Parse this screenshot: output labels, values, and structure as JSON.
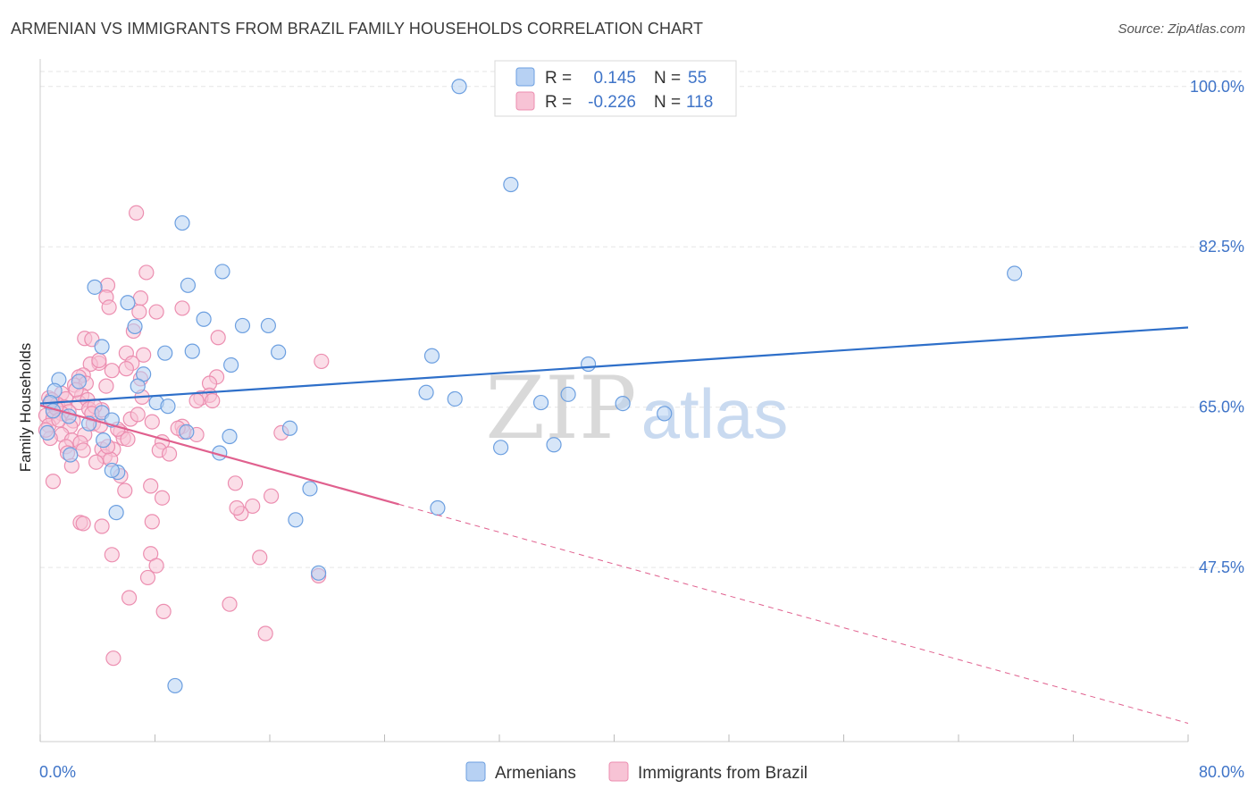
{
  "title": "ARMENIAN VS IMMIGRANTS FROM BRAZIL FAMILY HOUSEHOLDS CORRELATION CHART",
  "source": "Source: ZipAtlas.com",
  "watermark": {
    "zip": "ZIP",
    "atlas": "atlas"
  },
  "colors": {
    "blue": "#6c9fe0",
    "blue_fill": "#b7d1f3",
    "blue_line": "#2e6fc9",
    "pink": "#ec8eb0",
    "pink_fill": "#f7c3d5",
    "pink_line": "#e0608e",
    "grid": "#e5e5e5",
    "axis_text": "#3f74c8"
  },
  "legend": {
    "r_label": "R =",
    "n_label": "N =",
    "series": [
      {
        "r": "0.145",
        "n": "55"
      },
      {
        "r": "-0.226",
        "n": "118"
      }
    ]
  },
  "chart_data": {
    "type": "scatter",
    "title": "ARMENIAN VS IMMIGRANTS FROM BRAZIL FAMILY HOUSEHOLDS CORRELATION CHART",
    "xlabel": "",
    "ylabel": "Family Households",
    "xlim": [
      0,
      80
    ],
    "ylim": [
      28.5,
      103
    ],
    "x_tick_labels": [
      "0.0%",
      "80.0%"
    ],
    "y_ticks": [
      47.5,
      65.0,
      82.5,
      100.0
    ],
    "y_tick_labels": [
      "47.5%",
      "65.0%",
      "82.5%",
      "100.0%"
    ],
    "grid": true,
    "legend_position": "top-center",
    "series": [
      {
        "name": "Armenians",
        "r": 0.145,
        "n": 55,
        "trend": {
          "x0": 0,
          "y0": 65.4,
          "x1": 80,
          "y1": 73.7
        },
        "points": [
          [
            29.2,
            100.0
          ],
          [
            32.8,
            89.3
          ],
          [
            9.9,
            85.1
          ],
          [
            12.7,
            79.8
          ],
          [
            67.9,
            79.6
          ],
          [
            3.8,
            78.1
          ],
          [
            10.3,
            78.3
          ],
          [
            6.1,
            76.4
          ],
          [
            11.4,
            74.6
          ],
          [
            14.1,
            73.9
          ],
          [
            15.9,
            73.9
          ],
          [
            6.6,
            73.8
          ],
          [
            4.3,
            71.6
          ],
          [
            8.7,
            70.9
          ],
          [
            10.6,
            71.1
          ],
          [
            16.6,
            71.0
          ],
          [
            27.3,
            70.6
          ],
          [
            13.3,
            69.6
          ],
          [
            38.2,
            69.7
          ],
          [
            1.3,
            68.0
          ],
          [
            2.7,
            67.8
          ],
          [
            7.2,
            68.6
          ],
          [
            6.8,
            67.3
          ],
          [
            1.0,
            66.8
          ],
          [
            26.9,
            66.6
          ],
          [
            36.8,
            66.4
          ],
          [
            28.9,
            65.9
          ],
          [
            40.6,
            65.4
          ],
          [
            34.9,
            65.5
          ],
          [
            0.7,
            65.5
          ],
          [
            8.1,
            65.5
          ],
          [
            8.9,
            65.1
          ],
          [
            43.5,
            64.3
          ],
          [
            0.9,
            64.6
          ],
          [
            4.3,
            64.4
          ],
          [
            2.0,
            64.0
          ],
          [
            5.0,
            63.6
          ],
          [
            3.4,
            63.2
          ],
          [
            17.4,
            62.7
          ],
          [
            10.2,
            62.3
          ],
          [
            0.5,
            62.2
          ],
          [
            13.2,
            61.8
          ],
          [
            4.4,
            61.4
          ],
          [
            35.8,
            60.9
          ],
          [
            32.1,
            60.6
          ],
          [
            12.5,
            60.0
          ],
          [
            2.1,
            59.8
          ],
          [
            5.4,
            57.9
          ],
          [
            18.8,
            56.1
          ],
          [
            27.7,
            54.0
          ],
          [
            5.3,
            53.5
          ],
          [
            17.8,
            52.7
          ],
          [
            19.4,
            46.9
          ],
          [
            9.4,
            34.6
          ],
          [
            5.0,
            58.1
          ]
        ]
      },
      {
        "name": "Immigrants from Brazil",
        "r": -0.226,
        "n": 118,
        "trend": {
          "x0": 0,
          "y0": 65.2,
          "x1": 25.0,
          "y1": 54.4
        },
        "trend_extension": {
          "x0": 25.0,
          "y0": 54.4,
          "x1": 80,
          "y1": 30.5
        },
        "points": [
          [
            6.7,
            86.2
          ],
          [
            7.4,
            79.7
          ],
          [
            4.7,
            78.3
          ],
          [
            4.6,
            77.0
          ],
          [
            7.0,
            76.9
          ],
          [
            9.9,
            75.8
          ],
          [
            4.8,
            75.9
          ],
          [
            8.1,
            75.4
          ],
          [
            6.9,
            75.4
          ],
          [
            6.5,
            73.3
          ],
          [
            12.4,
            72.6
          ],
          [
            3.1,
            72.5
          ],
          [
            3.6,
            72.4
          ],
          [
            6.0,
            70.9
          ],
          [
            7.2,
            70.7
          ],
          [
            19.6,
            70.0
          ],
          [
            4.1,
            69.8
          ],
          [
            3.5,
            69.7
          ],
          [
            5.0,
            69.0
          ],
          [
            6.4,
            69.8
          ],
          [
            6.0,
            69.2
          ],
          [
            4.1,
            70.1
          ],
          [
            7.0,
            68.1
          ],
          [
            12.3,
            68.3
          ],
          [
            3.0,
            68.5
          ],
          [
            2.7,
            68.3
          ],
          [
            2.4,
            67.4
          ],
          [
            3.2,
            67.6
          ],
          [
            4.6,
            67.3
          ],
          [
            11.8,
            67.6
          ],
          [
            1.5,
            66.5
          ],
          [
            2.9,
            66.3
          ],
          [
            11.8,
            66.3
          ],
          [
            11.2,
            66.0
          ],
          [
            10.9,
            65.7
          ],
          [
            12.0,
            65.7
          ],
          [
            0.6,
            66.0
          ],
          [
            1.8,
            65.9
          ],
          [
            2.7,
            65.5
          ],
          [
            3.3,
            65.8
          ],
          [
            0.7,
            65.4
          ],
          [
            1.2,
            65.3
          ],
          [
            1.7,
            65.0
          ],
          [
            3.4,
            64.8
          ],
          [
            4.3,
            64.7
          ],
          [
            2.0,
            64.5
          ],
          [
            0.9,
            64.5
          ],
          [
            1.5,
            64.3
          ],
          [
            0.4,
            64.1
          ],
          [
            0.9,
            63.8
          ],
          [
            2.3,
            63.5
          ],
          [
            6.3,
            63.7
          ],
          [
            7.8,
            63.4
          ],
          [
            3.7,
            63.2
          ],
          [
            0.6,
            63.0
          ],
          [
            2.1,
            62.9
          ],
          [
            4.2,
            63.0
          ],
          [
            9.9,
            62.9
          ],
          [
            5.6,
            62.3
          ],
          [
            10.0,
            62.3
          ],
          [
            16.8,
            62.2
          ],
          [
            1.5,
            62.0
          ],
          [
            3.1,
            62.0
          ],
          [
            5.8,
            61.6
          ],
          [
            6.1,
            61.5
          ],
          [
            10.9,
            62.0
          ],
          [
            0.7,
            61.6
          ],
          [
            2.2,
            61.4
          ],
          [
            8.5,
            61.2
          ],
          [
            2.8,
            61.1
          ],
          [
            1.8,
            60.7
          ],
          [
            4.3,
            60.4
          ],
          [
            5.1,
            60.4
          ],
          [
            3.0,
            60.3
          ],
          [
            8.3,
            60.3
          ],
          [
            9.0,
            59.9
          ],
          [
            1.9,
            60.0
          ],
          [
            4.5,
            59.6
          ],
          [
            4.9,
            59.3
          ],
          [
            3.9,
            59.0
          ],
          [
            0.9,
            56.9
          ],
          [
            7.7,
            56.4
          ],
          [
            5.6,
            57.5
          ],
          [
            5.9,
            55.9
          ],
          [
            13.6,
            56.7
          ],
          [
            8.5,
            55.1
          ],
          [
            16.1,
            55.3
          ],
          [
            14.8,
            54.2
          ],
          [
            14.0,
            53.4
          ],
          [
            7.8,
            52.5
          ],
          [
            2.8,
            52.4
          ],
          [
            3.0,
            52.3
          ],
          [
            4.3,
            52.0
          ],
          [
            5.0,
            48.9
          ],
          [
            7.7,
            49.0
          ],
          [
            8.1,
            47.7
          ],
          [
            15.3,
            48.6
          ],
          [
            19.4,
            46.6
          ],
          [
            7.5,
            46.4
          ],
          [
            6.2,
            44.2
          ],
          [
            8.6,
            42.7
          ],
          [
            13.2,
            43.5
          ],
          [
            15.7,
            40.3
          ],
          [
            5.1,
            37.6
          ],
          [
            0.4,
            62.5
          ],
          [
            1.1,
            64.9
          ],
          [
            2.5,
            66.9
          ],
          [
            3.8,
            65.1
          ],
          [
            5.4,
            62.6
          ],
          [
            7.1,
            66.1
          ],
          [
            9.6,
            62.7
          ],
          [
            13.7,
            54.0
          ],
          [
            2.2,
            58.6
          ],
          [
            4.7,
            60.7
          ],
          [
            6.8,
            64.2
          ],
          [
            1.3,
            63.6
          ],
          [
            3.6,
            64.3
          ],
          [
            0.8,
            65.8
          ]
        ]
      }
    ]
  }
}
